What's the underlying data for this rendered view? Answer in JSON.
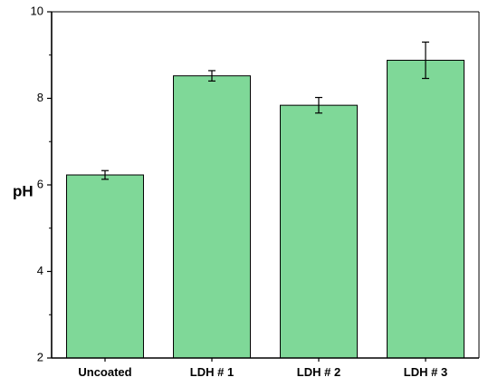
{
  "chart_data": {
    "type": "bar",
    "categories": [
      "Uncoated",
      "LDH # 1",
      "LDH # 2",
      "LDH # 3"
    ],
    "values": [
      6.23,
      8.52,
      7.84,
      8.88
    ],
    "errors": [
      0.1,
      0.12,
      0.18,
      0.42
    ],
    "xlabel": "",
    "ylabel": "pH",
    "ylim": [
      2,
      10
    ],
    "yticks": [
      2,
      4,
      6,
      8,
      10
    ],
    "ytick_labels": [
      "2",
      "4",
      "6",
      "8",
      "10"
    ],
    "grid": false,
    "legend": "none",
    "colors": {
      "bar_fill": "#7fd898",
      "bar_stroke": "#000000",
      "axis": "#000000"
    }
  }
}
